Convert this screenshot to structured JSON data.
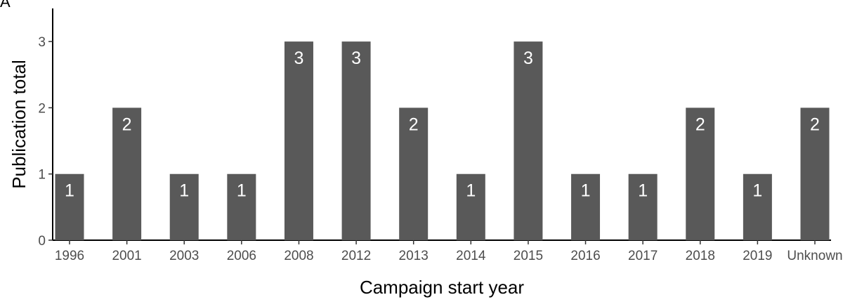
{
  "panel_tag": "A",
  "chart_data": {
    "type": "bar",
    "title": "",
    "xlabel": "Campaign start year",
    "ylabel": "Publication total",
    "categories": [
      "1996",
      "2001",
      "2003",
      "2006",
      "2008",
      "2012",
      "2013",
      "2014",
      "2015",
      "2016",
      "2017",
      "2018",
      "2019",
      "Unknown"
    ],
    "values": [
      1,
      2,
      1,
      1,
      3,
      3,
      2,
      1,
      3,
      1,
      1,
      2,
      1,
      2
    ],
    "yticks": [
      0,
      1,
      2,
      3
    ],
    "ylim": [
      0,
      3.5
    ],
    "grid": false,
    "legend": "none",
    "bar_color": "#595959",
    "data_label_color": "#ffffff"
  }
}
